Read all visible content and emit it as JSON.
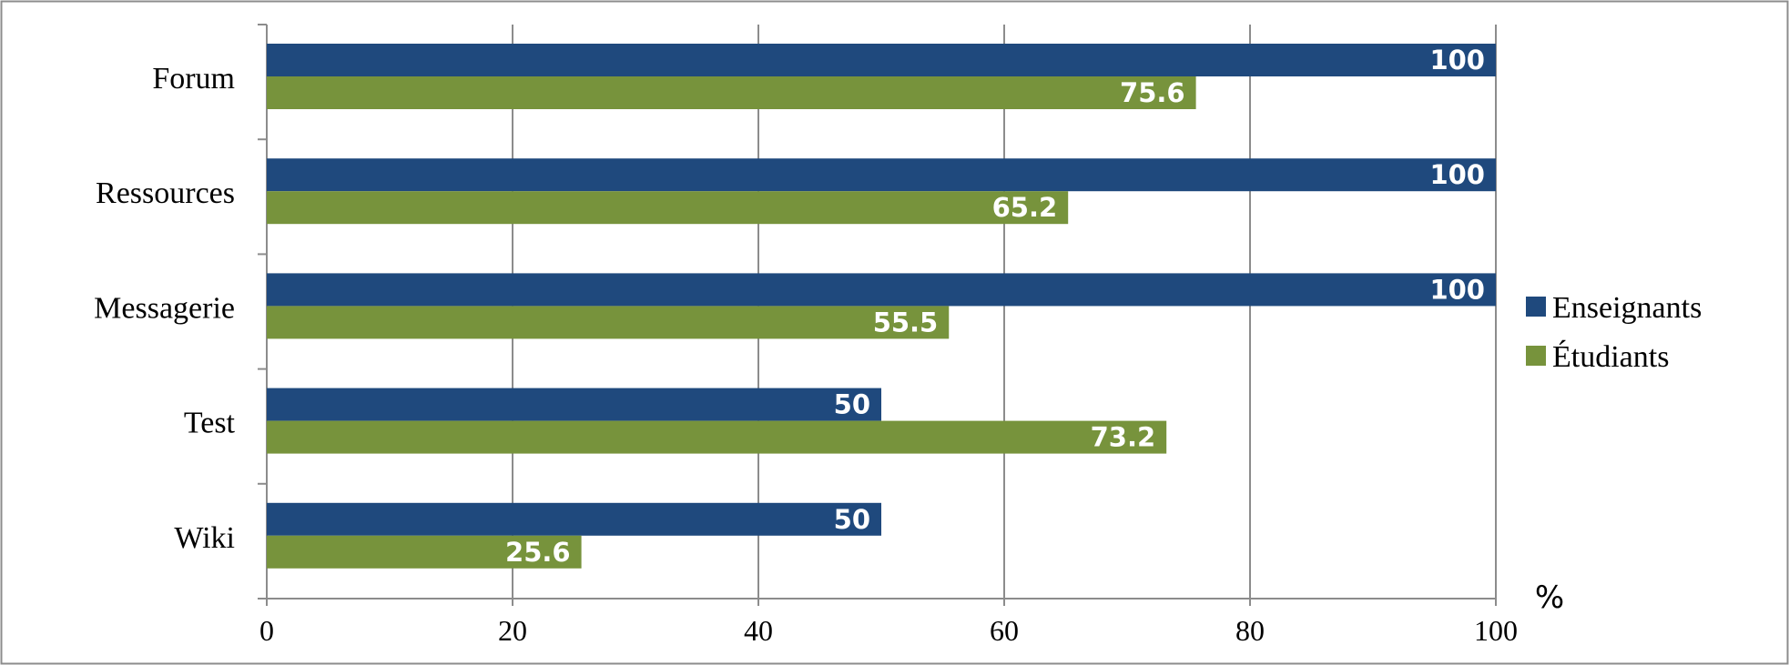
{
  "chart_data": {
    "type": "bar",
    "orientation": "horizontal",
    "categories": [
      "Forum",
      "Ressources",
      "Messagerie",
      "Test",
      "Wiki"
    ],
    "series": [
      {
        "name": "Enseignants",
        "color": "#1F497D",
        "values": [
          100,
          100,
          100,
          50,
          50
        ]
      },
      {
        "name": "Étudiants",
        "color": "#77933C",
        "values": [
          75.6,
          65.2,
          55.5,
          73.2,
          25.6
        ]
      }
    ],
    "x_ticks": [
      "0",
      "20",
      "40",
      "60",
      "80",
      "100"
    ],
    "xlim": [
      0,
      100
    ],
    "x_unit": "%",
    "grid": true,
    "legend_position": "right",
    "data_labels": true
  }
}
